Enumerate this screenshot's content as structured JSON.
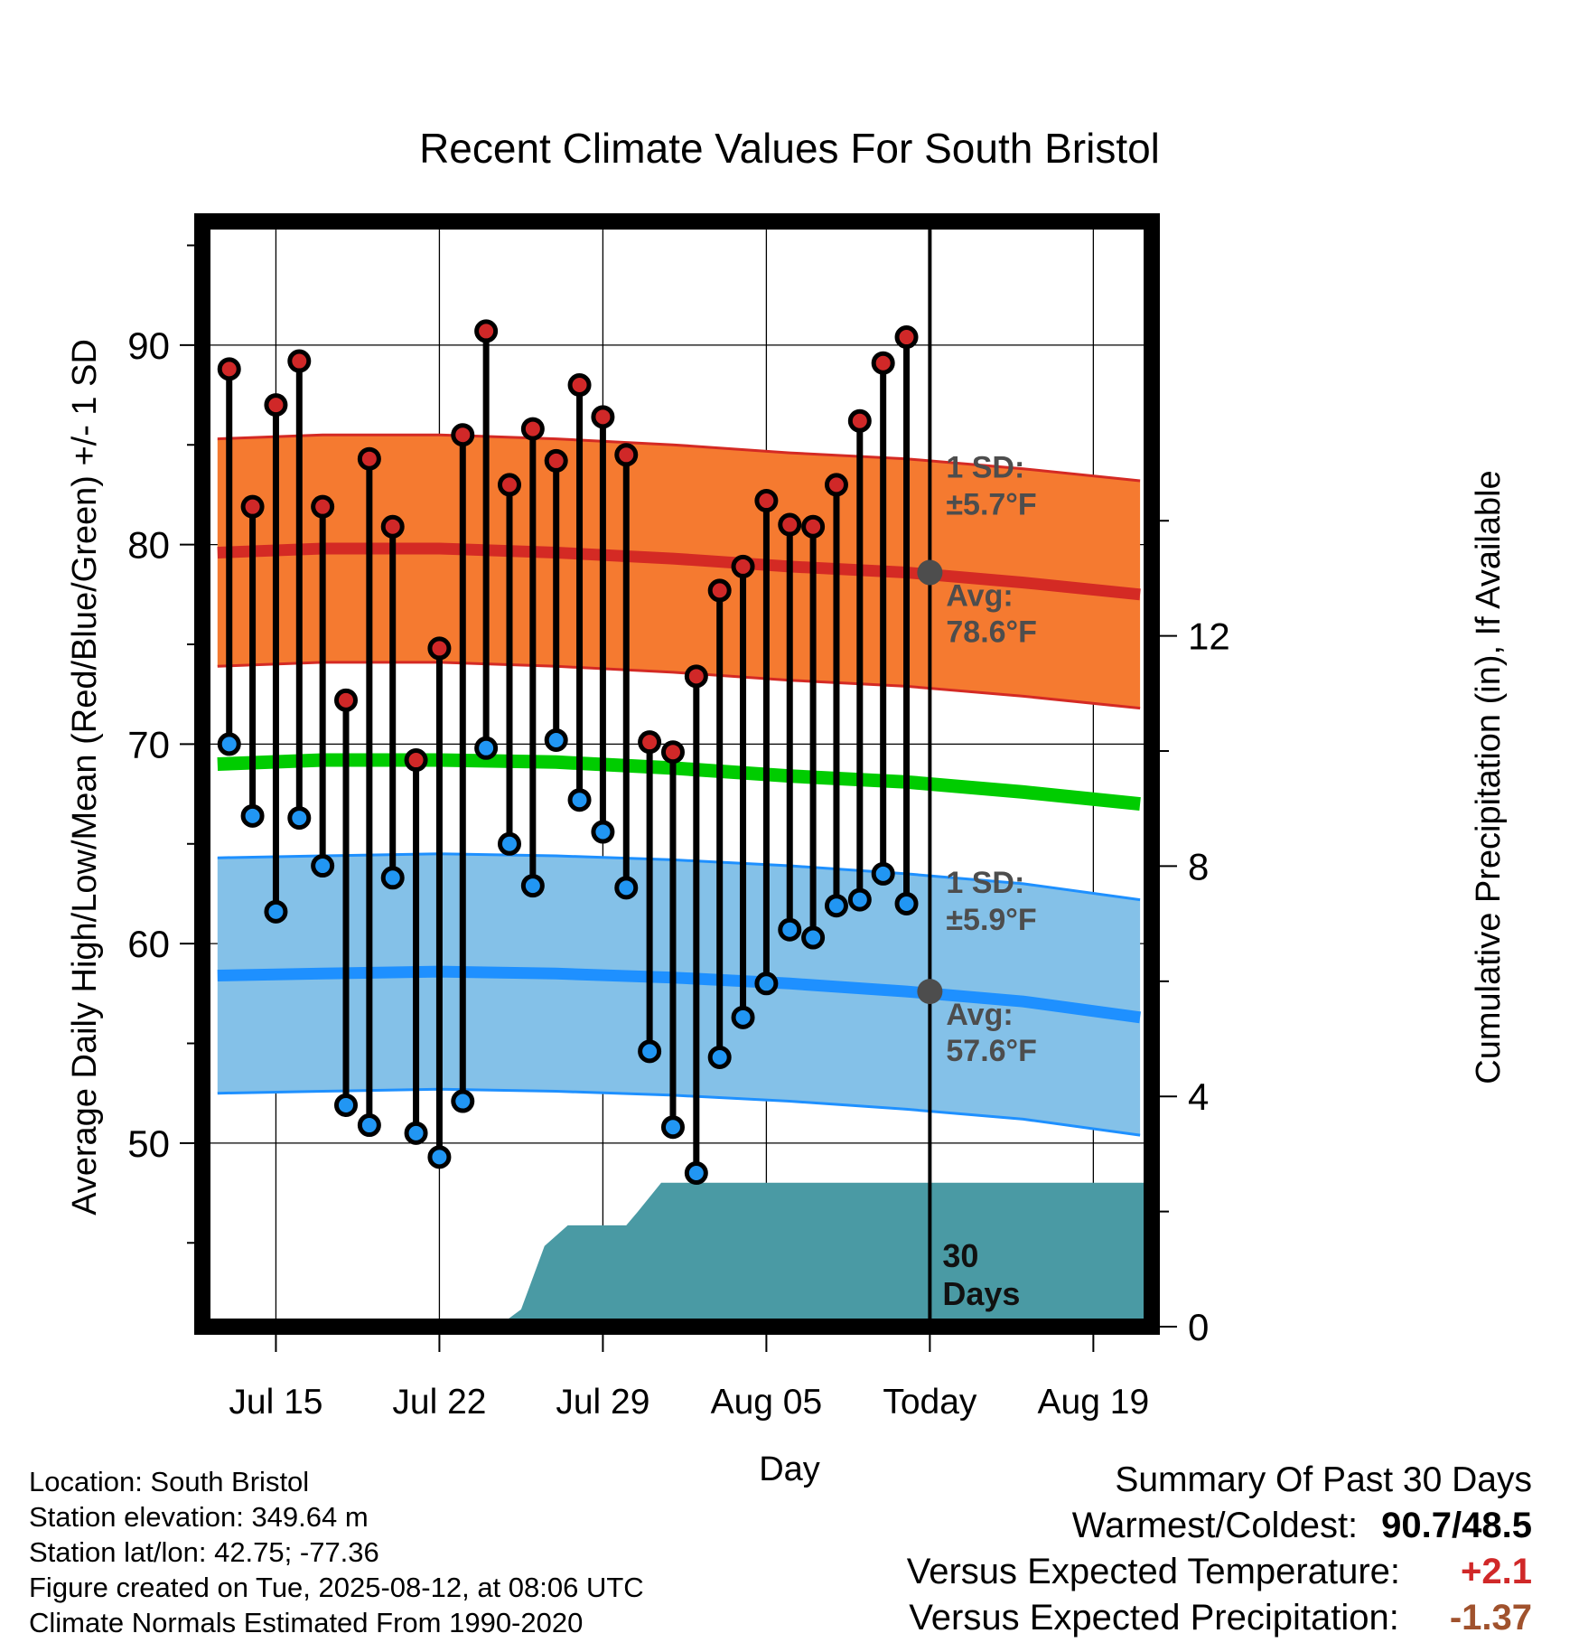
{
  "chart_data": {
    "type": "line",
    "title": "Recent Climate Values For South Bristol",
    "xlabel": "Day",
    "ylabel_left": "Average Daily High/Low/Mean (Red/Blue/Green) +/- 1 SD",
    "ylabel_right": "Cumulative Precipitation (in), If Available",
    "x_tick_labels": [
      "Jul 15",
      "Jul 22",
      "Jul 29",
      "Aug 05",
      "Today",
      "Aug 19"
    ],
    "x_tick_days": [
      2,
      9,
      16,
      23,
      30,
      37
    ],
    "xlim": [
      -1.15,
      39.5
    ],
    "ylim_left": [
      40.8,
      96.2
    ],
    "ylim_right": [
      0,
      19.2
    ],
    "y_ticks_left": [
      50,
      60,
      70,
      80,
      90
    ],
    "y_ticks_right": [
      0,
      4,
      8,
      12
    ],
    "grid": true,
    "x_days": [
      0,
      1,
      2,
      3,
      4,
      5,
      6,
      7,
      8,
      9,
      10,
      11,
      12,
      13,
      14,
      15,
      16,
      17,
      18,
      19,
      20,
      21,
      22,
      23,
      24,
      25,
      26,
      27,
      28,
      29
    ],
    "observed_high": [
      88.8,
      81.9,
      87.0,
      89.2,
      81.9,
      72.2,
      84.3,
      80.9,
      69.2,
      74.8,
      85.5,
      90.7,
      83.0,
      85.8,
      84.2,
      88.0,
      86.4,
      84.5,
      70.1,
      69.6,
      73.4,
      77.7,
      78.9,
      82.2,
      81.0,
      80.9,
      83.0,
      86.2,
      89.1,
      90.4
    ],
    "observed_low": [
      70.0,
      66.4,
      61.6,
      66.3,
      63.9,
      51.9,
      50.9,
      63.3,
      50.5,
      49.3,
      52.1,
      69.8,
      65.0,
      62.9,
      70.2,
      67.2,
      65.6,
      62.8,
      54.6,
      50.8,
      48.5,
      54.3,
      56.3,
      58.0,
      60.7,
      60.3,
      61.9,
      62.2,
      63.5,
      62.0
    ],
    "normal_days": [
      -0.5,
      4,
      9,
      14,
      19,
      24,
      29,
      34,
      39
    ],
    "normal_high": [
      79.6,
      79.8,
      79.8,
      79.6,
      79.3,
      78.9,
      78.6,
      78.1,
      77.5
    ],
    "normal_high_sd": 5.7,
    "normal_mean": [
      69.0,
      69.2,
      69.2,
      69.1,
      68.8,
      68.4,
      68.1,
      67.6,
      67.0
    ],
    "normal_low": [
      58.4,
      58.5,
      58.6,
      58.5,
      58.3,
      58.0,
      57.6,
      57.1,
      56.3
    ],
    "normal_low_sd": 5.9,
    "precip_cumulative": {
      "days": [
        -1.15,
        11.5,
        12.5,
        13.5,
        14.5,
        17.0,
        17.5,
        18.5,
        39.5
      ],
      "values": [
        0,
        0,
        0.3,
        1.4,
        1.76,
        1.76,
        2.0,
        2.5,
        2.5
      ]
    },
    "today_marker_day": 30,
    "annotations": {
      "high_sd": [
        "1 SD:",
        "±5.7°F"
      ],
      "high_avg": [
        "Avg:",
        "78.6°F"
      ],
      "low_sd": [
        "1 SD:",
        "±5.9°F"
      ],
      "low_avg": [
        "Avg:",
        "57.6°F"
      ],
      "window": [
        "30",
        "Days"
      ]
    },
    "today_avg_high": 78.6,
    "today_avg_low": 57.6
  },
  "station_info": [
    "Location: South Bristol",
    "Station elevation: 349.64 m",
    "Station lat/lon: 42.75; -77.36",
    "Figure created on Tue, 2025-08-12, at 08:06 UTC",
    "Climate Normals Estimated From 1990-2020"
  ],
  "summary": {
    "heading": "Summary Of Past 30 Days",
    "warm_cold_label": "Warmest/Coldest:",
    "warm_cold_value": "90.7/48.5",
    "temp_label": "Versus Expected Temperature:",
    "temp_value": "+2.1",
    "precip_label": "Versus Expected Precipitation:",
    "precip_value": "-1.37"
  },
  "colors": {
    "high_band": "#f57a30",
    "high_line": "#d42a24",
    "low_band": "#84c1e8",
    "low_line": "#1e90ff",
    "mean_line": "#00cc00",
    "precip_fill": "#4a9aa4",
    "high_marker": "#d02828",
    "low_marker": "#2196f3",
    "annotation_text": "#4d4d4d",
    "temp_value": "#d02828",
    "precip_value": "#a0522d"
  }
}
